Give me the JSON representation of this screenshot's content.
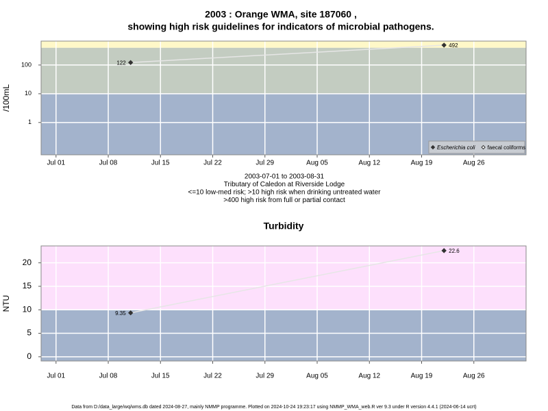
{
  "chart_data": [
    {
      "type": "line",
      "title": [
        "2003 : Orange WMA, site 187060 ,",
        "showing high risk guidelines for indicators of microbial pathogens."
      ],
      "notes": [
        "2003-07-01 to 2003-08-31",
        "Tributary of Caledon at Riverside Lodge",
        "<=10 low-med risk; >10 high risk when drinking untreated water",
        ">400 high risk from full or partial contact"
      ],
      "ylabel": "/100mL",
      "x": [
        "2003-07-11",
        "2003-08-22"
      ],
      "series": [
        {
          "name": "Escherichia coli",
          "color": "#333333",
          "marker": "filled-diamond",
          "values": [
            122,
            492
          ]
        },
        {
          "name": "faecal coliforms",
          "color": "#333333",
          "marker": "open-diamond",
          "values": [
            null,
            null
          ]
        }
      ],
      "line_color": "#e6e6e6",
      "xlim": [
        "2003-06-29",
        "2003-09-02"
      ],
      "xticks": [
        {
          "value": "2003-07-01",
          "label": "Jul 01"
        },
        {
          "value": "2003-07-08",
          "label": "Jul 08"
        },
        {
          "value": "2003-07-15",
          "label": "Jul 15"
        },
        {
          "value": "2003-07-22",
          "label": "Jul 22"
        },
        {
          "value": "2003-07-29",
          "label": "Jul 29"
        },
        {
          "value": "2003-08-05",
          "label": "Aug 05"
        },
        {
          "value": "2003-08-12",
          "label": "Aug 12"
        },
        {
          "value": "2003-08-19",
          "label": "Aug 19"
        },
        {
          "value": "2003-08-26",
          "label": "Aug 26"
        }
      ],
      "ylim": [
        0.075,
        680
      ],
      "yticks": [
        1,
        10,
        100
      ],
      "log_y": true,
      "grid": true,
      "bands": [
        {
          "to": 10,
          "color": "#a3b3cc"
        },
        {
          "from": 10,
          "to": 400,
          "color": "#c3ccc1"
        },
        {
          "from": 400,
          "color": "#fff8c8"
        }
      ],
      "legend": "bottom-right"
    },
    {
      "type": "line",
      "title": "Turbidity",
      "ylabel": "NTU",
      "x": [
        "2003-07-11",
        "2003-08-22"
      ],
      "values": [
        9.35,
        22.6
      ],
      "color": "#333333",
      "line_color": "#e6e6e6",
      "xlim": [
        "2003-06-29",
        "2003-09-02"
      ],
      "xticks": [
        {
          "value": "2003-07-01",
          "label": "Jul 01"
        },
        {
          "value": "2003-07-08",
          "label": "Jul 08"
        },
        {
          "value": "2003-07-15",
          "label": "Jul 15"
        },
        {
          "value": "2003-07-22",
          "label": "Jul 22"
        },
        {
          "value": "2003-07-29",
          "label": "Jul 29"
        },
        {
          "value": "2003-08-05",
          "label": "Aug 05"
        },
        {
          "value": "2003-08-12",
          "label": "Aug 12"
        },
        {
          "value": "2003-08-19",
          "label": "Aug 19"
        },
        {
          "value": "2003-08-26",
          "label": "Aug 26"
        }
      ],
      "ylim": [
        -0.9,
        23.6
      ],
      "yticks": [
        0,
        5,
        10,
        15,
        20
      ],
      "log_y": false,
      "grid": true,
      "bands": [
        {
          "to": 10,
          "color": "#a3b3cc"
        },
        {
          "from": 10,
          "color": "#fde0fc"
        }
      ]
    }
  ],
  "footer": "Data from D:/data_large/wq/wms.db dated 2024-08-27, mainly NMMP programme. Plotted on 2024-10-24 19:23:17 using NMMP_WMA_web.R ver 9.3 under R version 4.4.1 (2024-06-14 ucrt)"
}
